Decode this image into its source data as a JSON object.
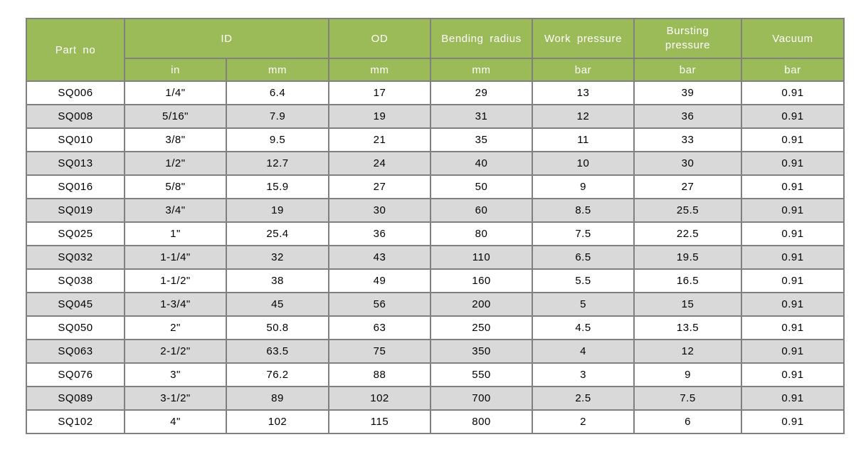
{
  "table": {
    "header": {
      "part_no": "Part no",
      "id": "ID",
      "od": "OD",
      "bending_radius": "Bending radius",
      "work_pressure": "Work pressure",
      "bursting_pressure": "Bursting pressure",
      "vacuum": "Vacuum",
      "unit_id_in": "in",
      "unit_id_mm": "mm",
      "unit_od_mm": "mm",
      "unit_bending_mm": "mm",
      "unit_work_bar": "bar",
      "unit_bursting_bar": "bar",
      "unit_vacuum_bar": "bar"
    },
    "column_keys": [
      "part-no",
      "id-in",
      "id-mm",
      "od-mm",
      "bending-radius-mm",
      "work-pressure-bar",
      "bursting-pressure-bar",
      "vacuum-bar"
    ],
    "rows": [
      [
        "SQ006",
        "1/4\"",
        "6.4",
        "17",
        "29",
        "13",
        "39",
        "0.91"
      ],
      [
        "SQ008",
        "5/16\"",
        "7.9",
        "19",
        "31",
        "12",
        "36",
        "0.91"
      ],
      [
        "SQ010",
        "3/8\"",
        "9.5",
        "21",
        "35",
        "11",
        "33",
        "0.91"
      ],
      [
        "SQ013",
        "1/2\"",
        "12.7",
        "24",
        "40",
        "10",
        "30",
        "0.91"
      ],
      [
        "SQ016",
        "5/8\"",
        "15.9",
        "27",
        "50",
        "9",
        "27",
        "0.91"
      ],
      [
        "SQ019",
        "3/4\"",
        "19",
        "30",
        "60",
        "8.5",
        "25.5",
        "0.91"
      ],
      [
        "SQ025",
        "1\"",
        "25.4",
        "36",
        "80",
        "7.5",
        "22.5",
        "0.91"
      ],
      [
        "SQ032",
        "1-1/4\"",
        "32",
        "43",
        "110",
        "6.5",
        "19.5",
        "0.91"
      ],
      [
        "SQ038",
        "1-1/2\"",
        "38",
        "49",
        "160",
        "5.5",
        "16.5",
        "0.91"
      ],
      [
        "SQ045",
        "1-3/4\"",
        "45",
        "56",
        "200",
        "5",
        "15",
        "0.91"
      ],
      [
        "SQ050",
        "2\"",
        "50.8",
        "63",
        "250",
        "4.5",
        "13.5",
        "0.91"
      ],
      [
        "SQ063",
        "2-1/2\"",
        "63.5",
        "75",
        "350",
        "4",
        "12",
        "0.91"
      ],
      [
        "SQ076",
        "3\"",
        "76.2",
        "88",
        "550",
        "3",
        "9",
        "0.91"
      ],
      [
        "SQ089",
        "3-1/2\"",
        "89",
        "102",
        "700",
        "2.5",
        "7.5",
        "0.91"
      ],
      [
        "SQ102",
        "4\"",
        "102",
        "115",
        "800",
        "2",
        "6",
        "0.91"
      ]
    ],
    "colors": {
      "header_bg": "#9BBB59",
      "header_text": "#FFFFFF",
      "border": "#808080",
      "row_bg": "#FFFFFF",
      "row_alt_bg": "#D9D9D9",
      "body_text": "#000000"
    }
  }
}
